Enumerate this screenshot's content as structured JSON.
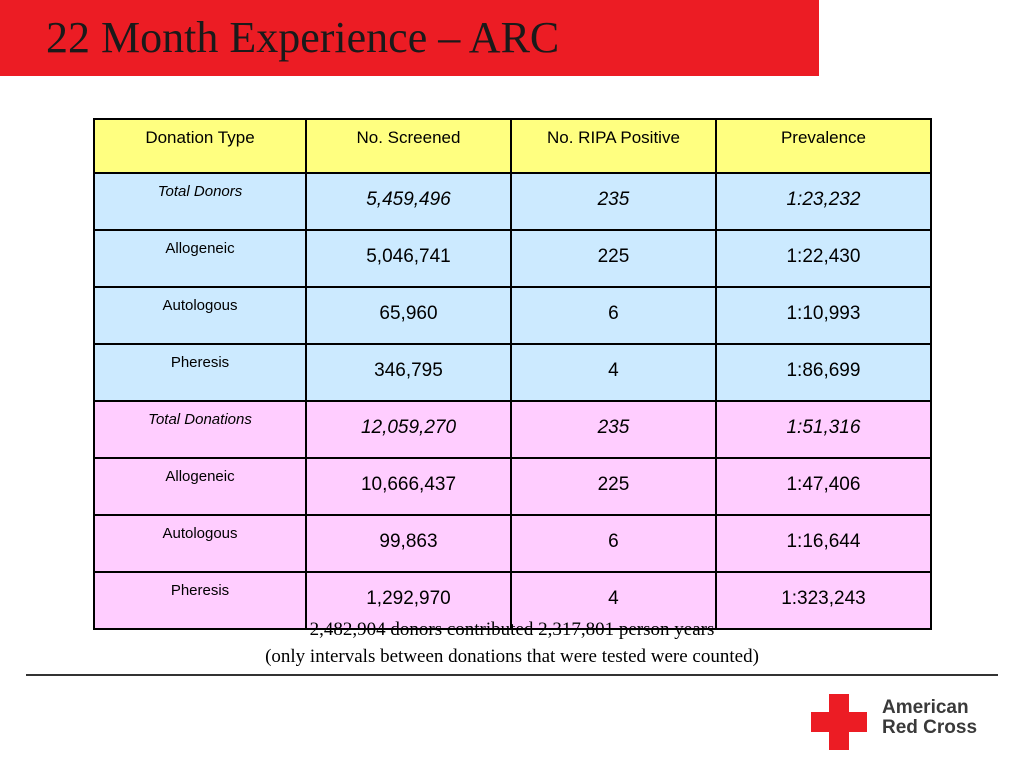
{
  "slide": {
    "title": "22 Month Experience – ARC"
  },
  "table": {
    "headers": [
      "Donation Type",
      "No. Screened",
      "No. RIPA Positive",
      "Prevalence"
    ],
    "rows": [
      {
        "type": "Total Donors",
        "screened": "5,459,496",
        "positive": "235",
        "prevalence": "1:23,232"
      },
      {
        "type": "Allogeneic",
        "screened": "5,046,741",
        "positive": "225",
        "prevalence": "1:22,430"
      },
      {
        "type": "Autologous",
        "screened": "65,960",
        "positive": "6",
        "prevalence": "1:10,993"
      },
      {
        "type": "Pheresis",
        "screened": "346,795",
        "positive": "4",
        "prevalence": "1:86,699"
      },
      {
        "type": "Total Donations",
        "screened": "12,059,270",
        "positive": "235",
        "prevalence": "1:51,316"
      },
      {
        "type": "Allogeneic",
        "screened": "10,666,437",
        "positive": "225",
        "prevalence": "1:47,406"
      },
      {
        "type": "Autologous",
        "screened": "99,863",
        "positive": "6",
        "prevalence": "1:16,644"
      },
      {
        "type": "Pheresis",
        "screened": "1,292,970",
        "positive": "4",
        "prevalence": "1:323,243"
      }
    ]
  },
  "footnote": {
    "line1": "2,482,904 donors contributed 2,317,801 person years",
    "line2": "(only intervals between donations that were tested were counted)"
  },
  "logo": {
    "line1": "American",
    "line2": "Red Cross",
    "icon": "red-cross-icon",
    "color": "#ec1c24"
  }
}
